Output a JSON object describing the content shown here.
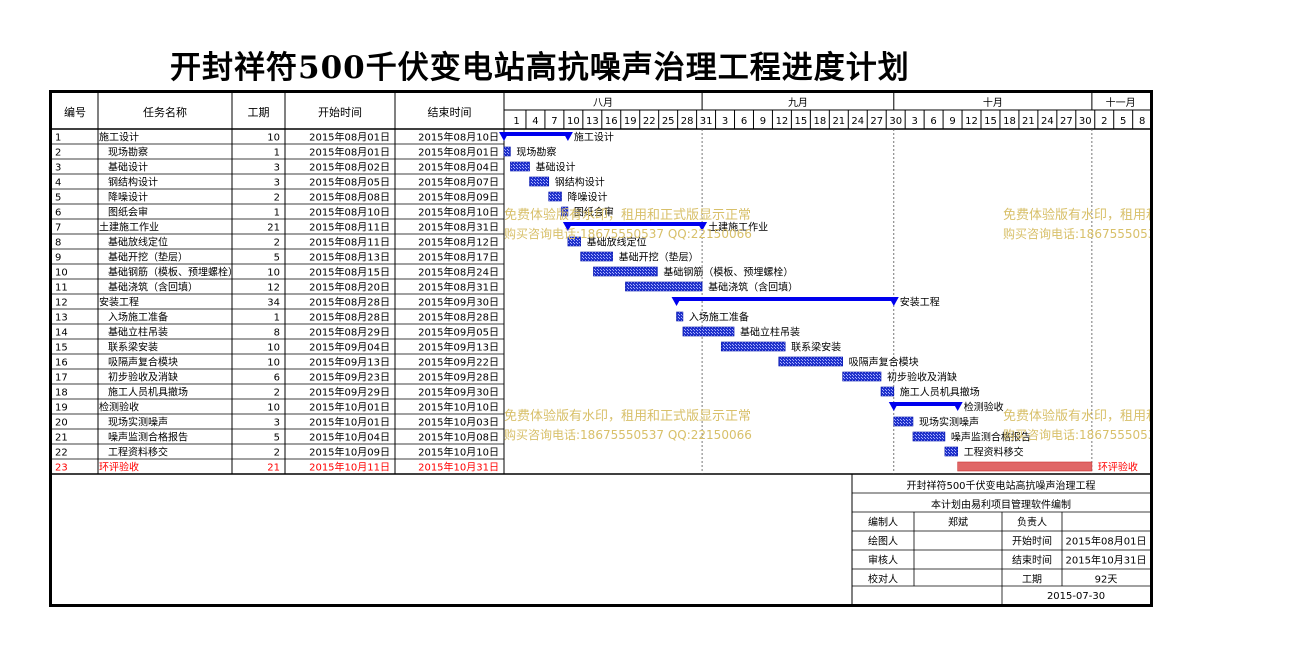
{
  "title": "开封祥符500千伏变电站高抗噪声治理工程进度计划",
  "columns": {
    "no": "编号",
    "name": "任务名称",
    "duration": "工期",
    "start": "开始时间",
    "end": "结束时间"
  },
  "months": [
    "八月",
    "九月",
    "十月",
    "十一月"
  ],
  "day_ticks": [
    "1",
    "4",
    "7",
    "10",
    "13",
    "16",
    "19",
    "22",
    "25",
    "28",
    "31",
    "3",
    "6",
    "9",
    "12",
    "15",
    "18",
    "21",
    "24",
    "27",
    "30",
    "3",
    "6",
    "9",
    "12",
    "15",
    "18",
    "21",
    "24",
    "27",
    "30",
    "2",
    "5",
    "8"
  ],
  "watermark": {
    "line1": "免费体验版有水印，租用和正式版显示正常",
    "line2": "购买咨询电话:18675550537 QQ:22150066"
  },
  "chart_data": {
    "type": "gantt",
    "x_axis": {
      "start": "2015-08-01",
      "end": "2015-11-09",
      "unit": "day"
    },
    "colors": {
      "summary": "#0000ee",
      "task": "#3344cc",
      "critical": "#e06666",
      "critical_text": "#ff0000"
    },
    "tasks": [
      {
        "no": "1",
        "name": "施工设计",
        "duration": "10",
        "start": "2015年08月01日",
        "end": "2015年08月10日",
        "level": 0,
        "kind": "summary",
        "start_day": 0,
        "days": 10
      },
      {
        "no": "2",
        "name": "现场勘察",
        "duration": "1",
        "start": "2015年08月01日",
        "end": "2015年08月01日",
        "level": 1,
        "kind": "task",
        "start_day": 0,
        "days": 1
      },
      {
        "no": "3",
        "name": "基础设计",
        "duration": "3",
        "start": "2015年08月02日",
        "end": "2015年08月04日",
        "level": 1,
        "kind": "task",
        "start_day": 1,
        "days": 3
      },
      {
        "no": "4",
        "name": "钢结构设计",
        "duration": "3",
        "start": "2015年08月05日",
        "end": "2015年08月07日",
        "level": 1,
        "kind": "task",
        "start_day": 4,
        "days": 3
      },
      {
        "no": "5",
        "name": "降噪设计",
        "duration": "2",
        "start": "2015年08月08日",
        "end": "2015年08月09日",
        "level": 1,
        "kind": "task",
        "start_day": 7,
        "days": 2
      },
      {
        "no": "6",
        "name": "图纸会审",
        "duration": "1",
        "start": "2015年08月10日",
        "end": "2015年08月10日",
        "level": 1,
        "kind": "task",
        "start_day": 9,
        "days": 1
      },
      {
        "no": "7",
        "name": "土建施工作业",
        "duration": "21",
        "start": "2015年08月11日",
        "end": "2015年08月31日",
        "level": 0,
        "kind": "summary",
        "start_day": 10,
        "days": 21
      },
      {
        "no": "8",
        "name": "基础放线定位",
        "duration": "2",
        "start": "2015年08月11日",
        "end": "2015年08月12日",
        "level": 1,
        "kind": "task",
        "start_day": 10,
        "days": 2
      },
      {
        "no": "9",
        "name": "基础开挖（垫层）",
        "duration": "5",
        "start": "2015年08月13日",
        "end": "2015年08月17日",
        "level": 1,
        "kind": "task",
        "start_day": 12,
        "days": 5
      },
      {
        "no": "10",
        "name": "基础钢筋（模板、预埋螺栓）",
        "duration": "10",
        "start": "2015年08月15日",
        "end": "2015年08月24日",
        "level": 1,
        "kind": "task",
        "start_day": 14,
        "days": 10
      },
      {
        "no": "11",
        "name": "基础浇筑（含回填）",
        "duration": "12",
        "start": "2015年08月20日",
        "end": "2015年08月31日",
        "level": 1,
        "kind": "task",
        "start_day": 19,
        "days": 12
      },
      {
        "no": "12",
        "name": "安装工程",
        "duration": "34",
        "start": "2015年08月28日",
        "end": "2015年09月30日",
        "level": 0,
        "kind": "summary",
        "start_day": 27,
        "days": 34
      },
      {
        "no": "13",
        "name": "入场施工准备",
        "duration": "1",
        "start": "2015年08月28日",
        "end": "2015年08月28日",
        "level": 1,
        "kind": "task",
        "start_day": 27,
        "days": 1
      },
      {
        "no": "14",
        "name": "基础立柱吊装",
        "duration": "8",
        "start": "2015年08月29日",
        "end": "2015年09月05日",
        "level": 1,
        "kind": "task",
        "start_day": 28,
        "days": 8
      },
      {
        "no": "15",
        "name": "联系梁安装",
        "duration": "10",
        "start": "2015年09月04日",
        "end": "2015年09月13日",
        "level": 1,
        "kind": "task",
        "start_day": 34,
        "days": 10
      },
      {
        "no": "16",
        "name": "吸隔声复合模块",
        "duration": "10",
        "start": "2015年09月13日",
        "end": "2015年09月22日",
        "level": 1,
        "kind": "task",
        "start_day": 43,
        "days": 10
      },
      {
        "no": "17",
        "name": "初步验收及消缺",
        "duration": "6",
        "start": "2015年09月23日",
        "end": "2015年09月28日",
        "level": 1,
        "kind": "task",
        "start_day": 53,
        "days": 6
      },
      {
        "no": "18",
        "name": "施工人员机具撤场",
        "duration": "2",
        "start": "2015年09月29日",
        "end": "2015年09月30日",
        "level": 1,
        "kind": "task",
        "start_day": 59,
        "days": 2
      },
      {
        "no": "19",
        "name": "检测验收",
        "duration": "10",
        "start": "2015年10月01日",
        "end": "2015年10月10日",
        "level": 0,
        "kind": "summary",
        "start_day": 61,
        "days": 10
      },
      {
        "no": "20",
        "name": "现场实测噪声",
        "duration": "3",
        "start": "2015年10月01日",
        "end": "2015年10月03日",
        "level": 1,
        "kind": "task",
        "start_day": 61,
        "days": 3
      },
      {
        "no": "21",
        "name": "噪声监测合格报告",
        "duration": "5",
        "start": "2015年10月04日",
        "end": "2015年10月08日",
        "level": 1,
        "kind": "task",
        "start_day": 64,
        "days": 5
      },
      {
        "no": "22",
        "name": "工程资料移交",
        "duration": "2",
        "start": "2015年10月09日",
        "end": "2015年10月10日",
        "level": 1,
        "kind": "task",
        "start_day": 69,
        "days": 2
      },
      {
        "no": "23",
        "name": "环评验收",
        "duration": "21",
        "start": "2015年10月11日",
        "end": "2015年10月31日",
        "level": 0,
        "kind": "critical",
        "start_day": 71,
        "days": 21
      }
    ]
  },
  "info_block": {
    "project": "开封祥符500千伏变电站高抗噪声治理工程",
    "software_note": "本计划由易利项目管理软件编制",
    "labels": {
      "compiler": "编制人",
      "owner": "负责人",
      "drafter": "绘图人",
      "start": "开始时间",
      "reviewer": "审核人",
      "end": "结束时间",
      "checker": "校对人",
      "duration": "工期"
    },
    "values": {
      "compiler": "郑斌",
      "owner": "",
      "start": "2015年08月01日",
      "end": "2015年10月31日",
      "duration": "92天"
    },
    "date": "2015-07-30"
  }
}
